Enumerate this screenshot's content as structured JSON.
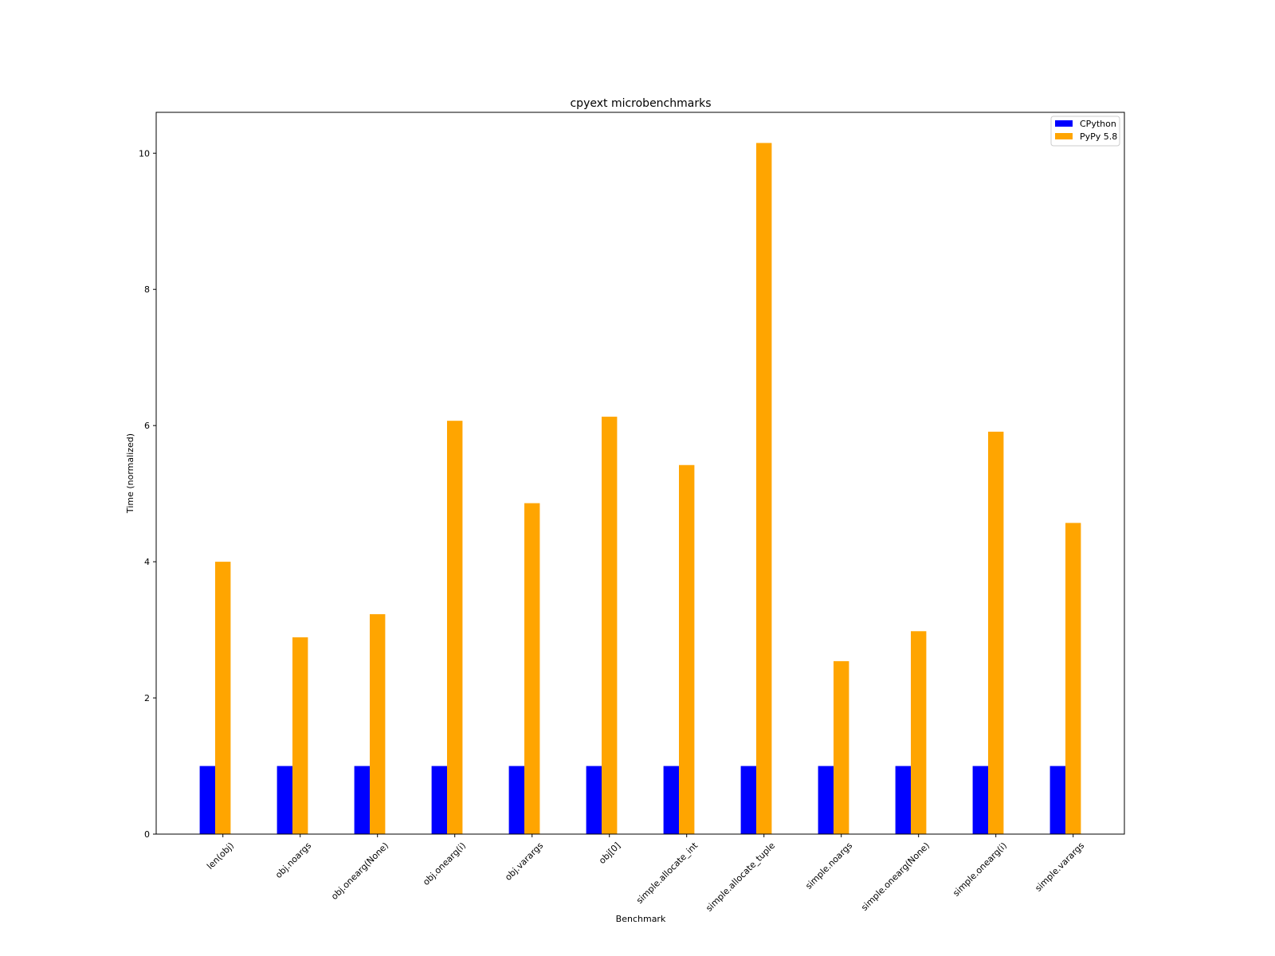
{
  "chart_data": {
    "type": "bar",
    "title": "cpyext microbenchmarks",
    "xlabel": "Benchmark",
    "ylabel": "Time (normalized)",
    "ylim": [
      0,
      10.6
    ],
    "yticks": [
      0,
      2,
      4,
      6,
      8,
      10
    ],
    "grid": false,
    "legend_position": "top-right",
    "categories": [
      "len(obj)",
      "obj.noargs",
      "obj.onearg(None)",
      "obj.onearg(i)",
      "obj.varargs",
      "obj[0]",
      "simple.allocate_int",
      "simple.allocate_tuple",
      "simple.noargs",
      "simple.onearg(None)",
      "simple.onearg(i)",
      "simple.varargs"
    ],
    "series": [
      {
        "name": "CPython",
        "color": "#0000ff",
        "values": [
          1,
          1,
          1,
          1,
          1,
          1,
          1,
          1,
          1,
          1,
          1,
          1
        ]
      },
      {
        "name": "PyPy 5.8",
        "color": "#ffa500",
        "values": [
          4.0,
          2.89,
          3.23,
          6.07,
          4.86,
          6.13,
          5.42,
          10.15,
          2.54,
          2.98,
          5.91,
          4.57
        ]
      }
    ]
  }
}
